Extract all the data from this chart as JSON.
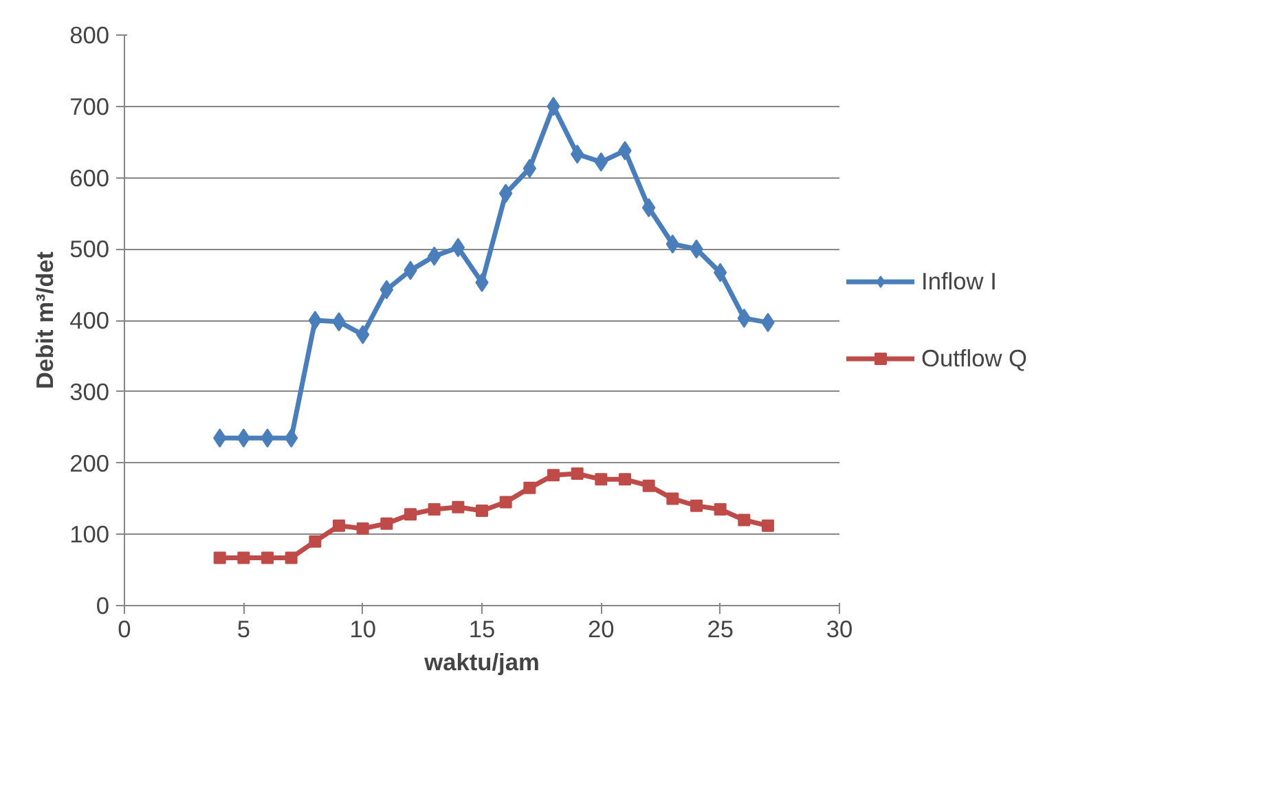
{
  "chart_data": {
    "type": "line",
    "xlabel": "waktu/jam",
    "ylabel": "Debit m³/det",
    "x": [
      4,
      5,
      6,
      7,
      8,
      9,
      10,
      11,
      12,
      13,
      14,
      15,
      16,
      17,
      18,
      19,
      20,
      21,
      22,
      23,
      24,
      25,
      26,
      27
    ],
    "series": [
      {
        "name": "Inflow I",
        "color": "#4a7ebb",
        "marker": "diamond",
        "values": [
          235,
          235,
          235,
          235,
          400,
          398,
          380,
          443,
          470,
          490,
          502,
          453,
          578,
          613,
          700,
          633,
          622,
          638,
          558,
          507,
          500,
          467,
          403,
          397
        ]
      },
      {
        "name": "Outflow Q",
        "color": "#be4b48",
        "marker": "square",
        "values": [
          67,
          67,
          67,
          67,
          90,
          112,
          108,
          115,
          128,
          135,
          138,
          133,
          145,
          165,
          183,
          185,
          177,
          177,
          168,
          150,
          140,
          135,
          120,
          112
        ]
      }
    ],
    "xlim": [
      0,
      30
    ],
    "xticks": [
      0,
      5,
      10,
      15,
      20,
      25,
      30
    ],
    "ylim": [
      0,
      800
    ],
    "yticks": [
      0,
      100,
      200,
      300,
      400,
      500,
      600,
      700,
      800
    ],
    "grid": "y",
    "legend": "right"
  }
}
